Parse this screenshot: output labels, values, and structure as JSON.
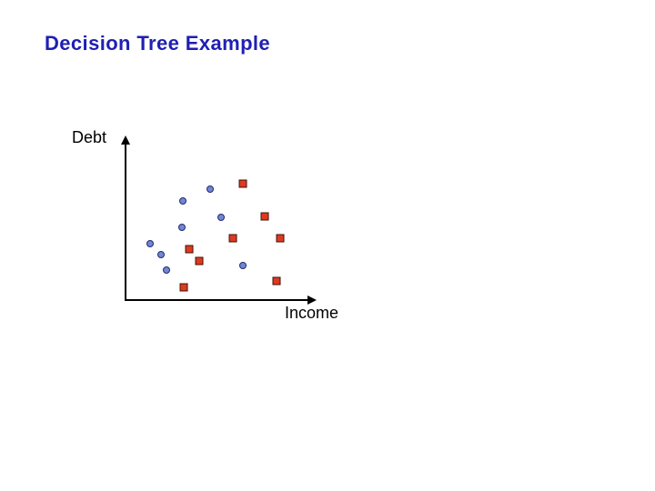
{
  "slide": {
    "title": "Decision Tree Example",
    "title_color": "#1f1fb4",
    "background": "#ffffff"
  },
  "chart_data": {
    "type": "scatter",
    "title": "Decision Tree Example",
    "xlabel": "Income",
    "ylabel": "Debt",
    "xlim": [
      0,
      100
    ],
    "ylim": [
      0,
      100
    ],
    "grid": false,
    "legend": "none",
    "axis_color": "#000000",
    "axes_have_tick_labels": false,
    "series": [
      {
        "name": "class-blue-circles",
        "marker": "circle",
        "fill": "#7486d2",
        "border": "#1c2c70",
        "points": [
          {
            "x": 44.5,
            "y": 68.2
          },
          {
            "x": 30.0,
            "y": 61.3
          },
          {
            "x": 50.1,
            "y": 51.3
          },
          {
            "x": 29.8,
            "y": 44.8
          },
          {
            "x": 12.8,
            "y": 34.8
          },
          {
            "x": 18.7,
            "y": 28.3
          },
          {
            "x": 21.5,
            "y": 18.7
          },
          {
            "x": 61.7,
            "y": 21.5
          }
        ]
      },
      {
        "name": "class-red-squares",
        "marker": "square",
        "fill": "#de3a20",
        "border": "#401008",
        "points": [
          {
            "x": 61.9,
            "y": 71.5
          },
          {
            "x": 73.1,
            "y": 51.7
          },
          {
            "x": 56.3,
            "y": 38.3
          },
          {
            "x": 81.5,
            "y": 38.3
          },
          {
            "x": 33.3,
            "y": 31.5
          },
          {
            "x": 38.9,
            "y": 24.4
          },
          {
            "x": 79.3,
            "y": 12.0
          },
          {
            "x": 30.6,
            "y": 8.3
          }
        ]
      }
    ]
  }
}
